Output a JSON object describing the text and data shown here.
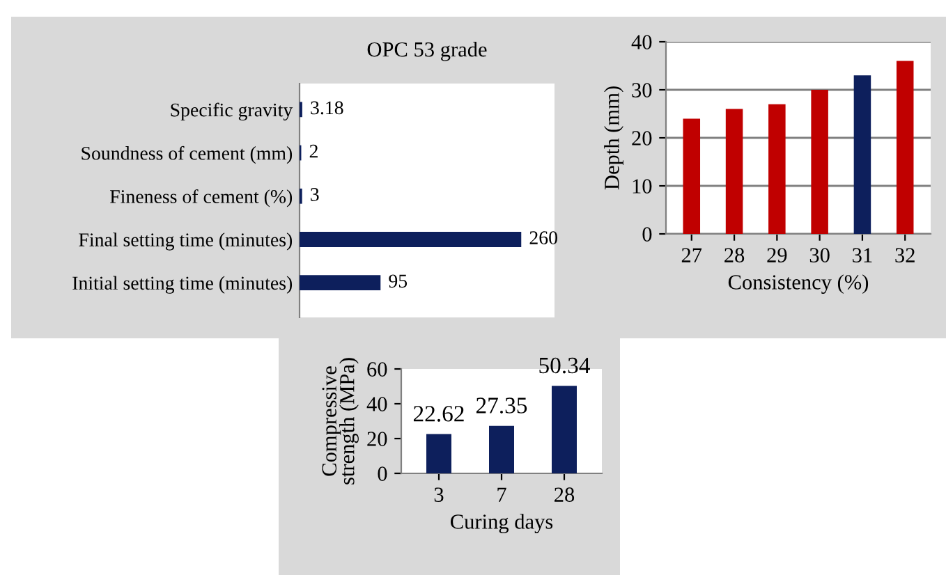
{
  "chart_data": [
    {
      "type": "bar",
      "orientation": "horizontal",
      "title": "OPC 53 grade",
      "categories": [
        "Specific gravity",
        "Soundness of cement (mm)",
        "Fineness of cement (%)",
        "Final setting time (minutes)",
        "Initial setting time (minutes)"
      ],
      "values": [
        3.18,
        2,
        3,
        260,
        95
      ],
      "color": "#0d1f5c",
      "data_labels": true,
      "tick_labels": "y",
      "grid": false
    },
    {
      "type": "bar",
      "categories": [
        "27",
        "28",
        "29",
        "30",
        "31",
        "32"
      ],
      "values": [
        24,
        26,
        27,
        30,
        33,
        36
      ],
      "colors": [
        "#c00000",
        "#c00000",
        "#c00000",
        "#c00000",
        "#0d1f5c",
        "#c00000"
      ],
      "xlabel": "Consistency (%)",
      "ylabel": "Depth (mm)",
      "ylim": [
        0,
        40
      ],
      "yticks": [
        0,
        10,
        20,
        30,
        40
      ],
      "grid": "y"
    },
    {
      "type": "bar",
      "categories": [
        "3",
        "7",
        "28"
      ],
      "values": [
        22.62,
        27.35,
        50.34
      ],
      "color": "#0d1f5c",
      "xlabel": "Curing days",
      "ylabel": "Compressive\nstrength (MPa)",
      "ylim": [
        0,
        60
      ],
      "yticks": [
        0,
        20,
        40,
        60
      ],
      "data_labels": true,
      "grid": false
    }
  ]
}
